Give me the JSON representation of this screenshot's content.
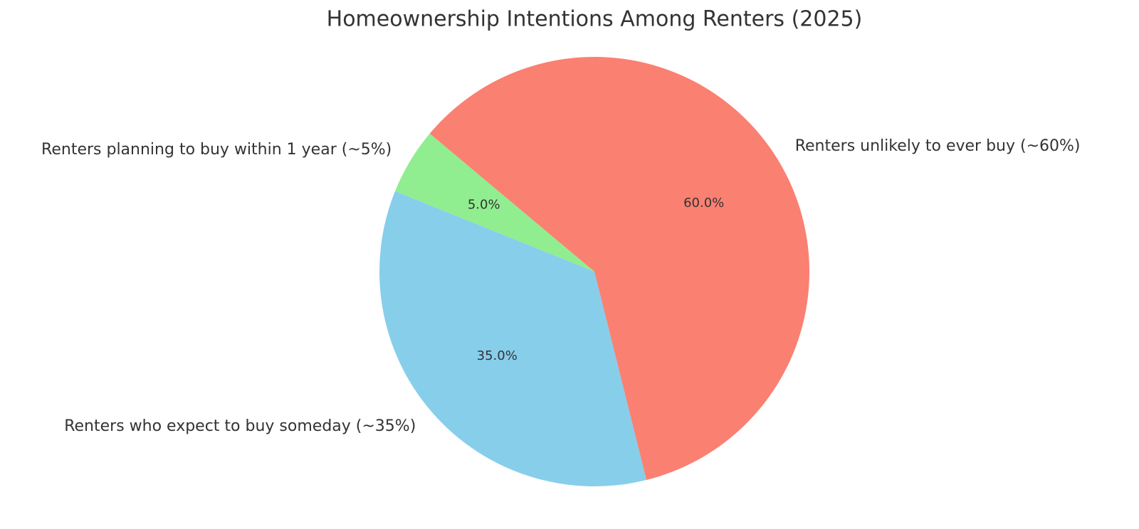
{
  "chart_data": {
    "type": "pie",
    "title": "Homeownership Intentions Among Renters (2025)",
    "categories": [
      "Renters planning to buy within 1 year (~5%)",
      "Renters who expect to buy someday (~35%)",
      "Renters unlikely to ever buy (~60%)"
    ],
    "values": [
      5,
      35,
      60
    ],
    "value_labels": [
      "5.0%",
      "35.0%",
      "60.0%"
    ],
    "colors": [
      "#90ee90",
      "#87ceeb",
      "#fa8072"
    ],
    "start_angle": 140
  }
}
